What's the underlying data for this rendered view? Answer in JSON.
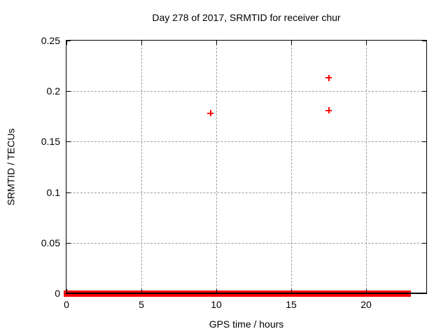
{
  "window": {
    "background": "#ffffff"
  },
  "chart_data": {
    "type": "scatter",
    "title": "Day 278 of 2017, SRMTID for receiver chur",
    "xlabel": "GPS time / hours",
    "ylabel": "SRMTID / TECUs",
    "xlim": [
      0,
      24
    ],
    "ylim": [
      0,
      0.25
    ],
    "xticks": [
      0,
      5,
      10,
      15,
      20
    ],
    "xtick_labels": [
      "0",
      "5",
      "10",
      "15",
      "20"
    ],
    "yticks": [
      0,
      0.05,
      0.1,
      0.15,
      0.2,
      0.25
    ],
    "ytick_labels": [
      "0",
      "0.05",
      "0.1",
      "0.15",
      "0.2",
      "0.25"
    ],
    "grid": true,
    "grid_style": "dashed",
    "tick_style": "inward-mirrored",
    "legend": "none",
    "marker": "+",
    "colors": {
      "series": "#ff0000",
      "grid": "#9e9e9e",
      "axis": "#000000",
      "text": "#000000",
      "background": "#ffffff"
    },
    "series": [
      {
        "name": "SRMTID",
        "points": [
          {
            "x": 9.6,
            "y": 0.178
          },
          {
            "x": 17.5,
            "y": 0.213
          },
          {
            "x": 17.5,
            "y": 0.181
          }
        ]
      }
    ],
    "zero_baseline": {
      "y": 0,
      "x_start": 0,
      "x_end": 22.8
    }
  }
}
